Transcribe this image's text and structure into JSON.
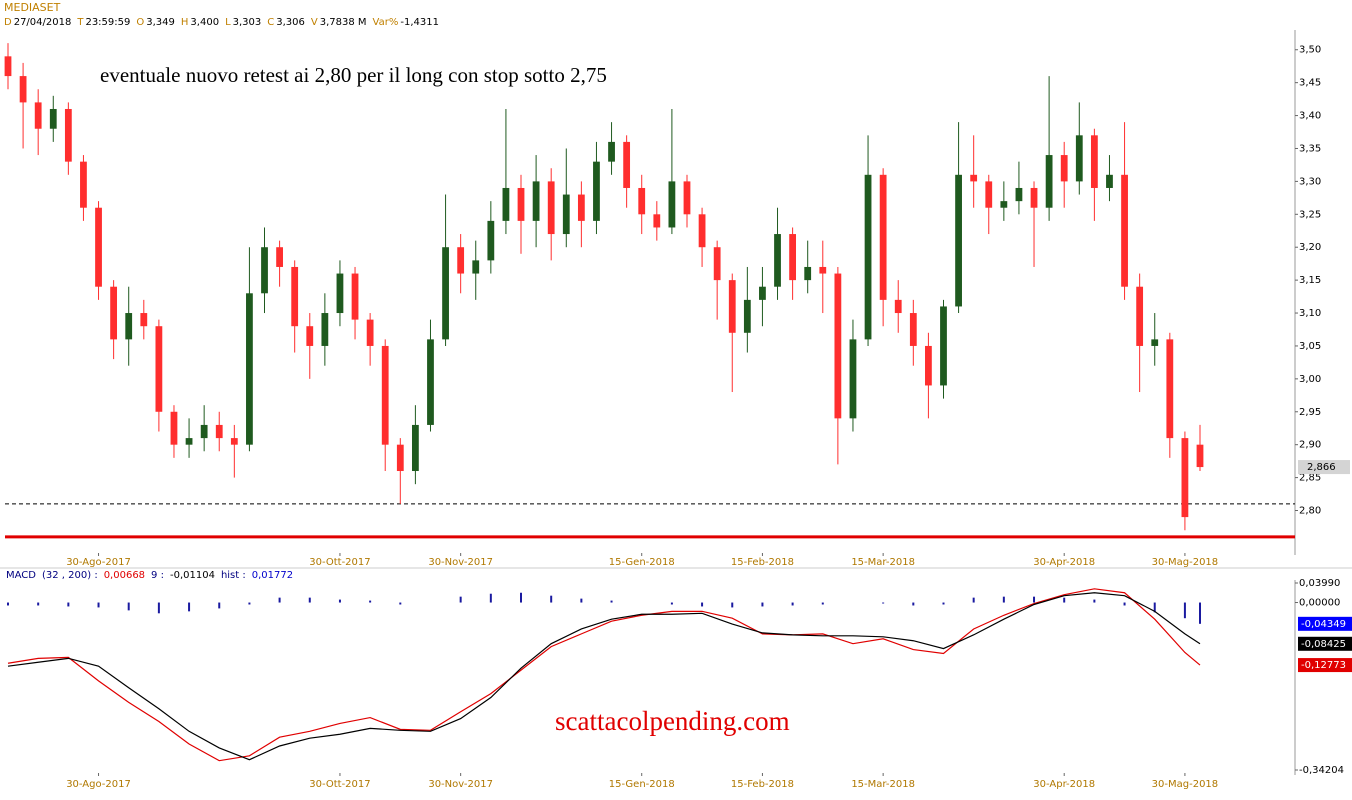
{
  "chart_data": [
    {
      "type": "candlestick",
      "title": "MEDIASET",
      "info": [
        {
          "key": "D",
          "value": "27/04/2018"
        },
        {
          "key": "T",
          "value": "23:59:59"
        },
        {
          "key": "O",
          "value": "3,349"
        },
        {
          "key": "H",
          "value": "3,400"
        },
        {
          "key": "L",
          "value": "3,303"
        },
        {
          "key": "C",
          "value": "3,306"
        },
        {
          "key": "V",
          "value": "3,7838 M"
        },
        {
          "key": "Var%",
          "value": "-1,4311"
        }
      ],
      "annotation": "eventuale nuovo retest ai 2,80 per il long con stop sotto 2,75",
      "up_color": "#1f5a1f",
      "down_color": "#ff2e2e",
      "ohlc": [
        [
          3.49,
          3.51,
          3.44,
          3.46
        ],
        [
          3.46,
          3.48,
          3.35,
          3.42
        ],
        [
          3.42,
          3.44,
          3.34,
          3.38
        ],
        [
          3.38,
          3.43,
          3.36,
          3.41
        ],
        [
          3.41,
          3.42,
          3.31,
          3.33
        ],
        [
          3.33,
          3.34,
          3.24,
          3.26
        ],
        [
          3.26,
          3.27,
          3.12,
          3.14
        ],
        [
          3.14,
          3.15,
          3.03,
          3.06
        ],
        [
          3.06,
          3.14,
          3.02,
          3.1
        ],
        [
          3.1,
          3.12,
          3.06,
          3.08
        ],
        [
          3.08,
          3.09,
          2.92,
          2.95
        ],
        [
          2.95,
          2.96,
          2.88,
          2.9
        ],
        [
          2.9,
          2.94,
          2.88,
          2.91
        ],
        [
          2.91,
          2.96,
          2.89,
          2.93
        ],
        [
          2.93,
          2.95,
          2.89,
          2.91
        ],
        [
          2.91,
          2.93,
          2.85,
          2.9
        ],
        [
          2.9,
          3.2,
          2.89,
          3.13
        ],
        [
          3.13,
          3.23,
          3.1,
          3.2
        ],
        [
          3.2,
          3.21,
          3.14,
          3.17
        ],
        [
          3.17,
          3.18,
          3.04,
          3.08
        ],
        [
          3.08,
          3.1,
          3.0,
          3.05
        ],
        [
          3.05,
          3.13,
          3.02,
          3.1
        ],
        [
          3.1,
          3.18,
          3.08,
          3.16
        ],
        [
          3.16,
          3.17,
          3.06,
          3.09
        ],
        [
          3.09,
          3.1,
          3.02,
          3.05
        ],
        [
          3.05,
          3.06,
          2.86,
          2.9
        ],
        [
          2.9,
          2.91,
          2.81,
          2.86
        ],
        [
          2.86,
          2.96,
          2.84,
          2.93
        ],
        [
          2.93,
          3.09,
          2.92,
          3.06
        ],
        [
          3.06,
          3.28,
          3.05,
          3.2
        ],
        [
          3.2,
          3.22,
          3.13,
          3.16
        ],
        [
          3.16,
          3.21,
          3.12,
          3.18
        ],
        [
          3.18,
          3.27,
          3.16,
          3.24
        ],
        [
          3.24,
          3.41,
          3.22,
          3.29
        ],
        [
          3.29,
          3.31,
          3.19,
          3.24
        ],
        [
          3.24,
          3.34,
          3.2,
          3.3
        ],
        [
          3.3,
          3.32,
          3.18,
          3.22
        ],
        [
          3.22,
          3.35,
          3.2,
          3.28
        ],
        [
          3.28,
          3.3,
          3.2,
          3.24
        ],
        [
          3.24,
          3.36,
          3.22,
          3.33
        ],
        [
          3.33,
          3.39,
          3.31,
          3.36
        ],
        [
          3.36,
          3.37,
          3.26,
          3.29
        ],
        [
          3.29,
          3.31,
          3.22,
          3.25
        ],
        [
          3.25,
          3.27,
          3.21,
          3.23
        ],
        [
          3.23,
          3.41,
          3.22,
          3.3
        ],
        [
          3.3,
          3.31,
          3.23,
          3.25
        ],
        [
          3.25,
          3.26,
          3.17,
          3.2
        ],
        [
          3.2,
          3.21,
          3.09,
          3.15
        ],
        [
          3.15,
          3.16,
          2.98,
          3.07
        ],
        [
          3.07,
          3.17,
          3.04,
          3.12
        ],
        [
          3.12,
          3.17,
          3.08,
          3.14
        ],
        [
          3.14,
          3.26,
          3.12,
          3.22
        ],
        [
          3.22,
          3.23,
          3.12,
          3.15
        ],
        [
          3.15,
          3.21,
          3.13,
          3.17
        ],
        [
          3.17,
          3.21,
          3.1,
          3.16
        ],
        [
          3.16,
          3.17,
          2.87,
          2.94
        ],
        [
          2.94,
          3.09,
          2.92,
          3.06
        ],
        [
          3.06,
          3.37,
          3.05,
          3.31
        ],
        [
          3.31,
          3.32,
          3.08,
          3.12
        ],
        [
          3.12,
          3.15,
          3.07,
          3.1
        ],
        [
          3.1,
          3.12,
          3.02,
          3.05
        ],
        [
          3.05,
          3.07,
          2.94,
          2.99
        ],
        [
          2.99,
          3.12,
          2.97,
          3.11
        ],
        [
          3.11,
          3.39,
          3.1,
          3.31
        ],
        [
          3.31,
          3.37,
          3.26,
          3.3
        ],
        [
          3.3,
          3.31,
          3.22,
          3.26
        ],
        [
          3.26,
          3.3,
          3.24,
          3.27
        ],
        [
          3.27,
          3.33,
          3.25,
          3.29
        ],
        [
          3.29,
          3.3,
          3.17,
          3.26
        ],
        [
          3.26,
          3.46,
          3.24,
          3.34
        ],
        [
          3.34,
          3.36,
          3.26,
          3.3
        ],
        [
          3.3,
          3.42,
          3.28,
          3.37
        ],
        [
          3.37,
          3.38,
          3.24,
          3.29
        ],
        [
          3.29,
          3.34,
          3.27,
          3.31
        ],
        [
          3.31,
          3.39,
          3.12,
          3.14
        ],
        [
          3.14,
          3.16,
          2.98,
          3.05
        ],
        [
          3.05,
          3.1,
          3.02,
          3.06
        ],
        [
          3.06,
          3.07,
          2.88,
          2.91
        ],
        [
          2.91,
          2.92,
          2.77,
          2.79
        ],
        [
          2.9,
          2.93,
          2.86,
          2.866
        ]
      ],
      "xticks": [
        {
          "value": 6,
          "label": "30-Ago-2017"
        },
        {
          "value": 22,
          "label": "30-Ott-2017"
        },
        {
          "value": 30,
          "label": "30-Nov-2017"
        },
        {
          "value": 42,
          "label": "15-Gen-2018"
        },
        {
          "value": 50,
          "label": "15-Feb-2018"
        },
        {
          "value": 58,
          "label": "15-Mar-2018"
        },
        {
          "value": 70,
          "label": "30-Apr-2018"
        },
        {
          "value": 78,
          "label": "30-Mag-2018"
        }
      ],
      "xlim": [
        0,
        79
      ],
      "ylim": [
        2.74,
        3.53
      ],
      "yticks": [
        {
          "value": 2.8,
          "label": "2,80"
        },
        {
          "value": 2.85,
          "label": "2,85"
        },
        {
          "value": 2.9,
          "label": "2,90"
        },
        {
          "value": 2.95,
          "label": "2,95"
        },
        {
          "value": 3.0,
          "label": "3,00"
        },
        {
          "value": 3.05,
          "label": "3,05"
        },
        {
          "value": 3.1,
          "label": "3,10"
        },
        {
          "value": 3.15,
          "label": "3,15"
        },
        {
          "value": 3.2,
          "label": "3,20"
        },
        {
          "value": 3.25,
          "label": "3,25"
        },
        {
          "value": 3.3,
          "label": "3,30"
        },
        {
          "value": 3.35,
          "label": "3,35"
        },
        {
          "value": 3.4,
          "label": "3,40"
        },
        {
          "value": 3.45,
          "label": "3,45"
        },
        {
          "value": 3.5,
          "label": "3,50"
        }
      ],
      "hlines": [
        {
          "value": 2.81,
          "color": "#000000",
          "dashed": true
        },
        {
          "value": 2.76,
          "color": "#e00000",
          "dashed": false
        }
      ],
      "last_price": {
        "value": 2.866,
        "label": "2,866"
      }
    },
    {
      "type": "macd",
      "info": [
        {
          "text": "MACD",
          "color": "#000080"
        },
        {
          "text": "(32 , 200) :",
          "color": "#000080"
        },
        {
          "text": "0,00668",
          "color": "#e00000"
        },
        {
          "text": "9 :",
          "color": "#000080"
        },
        {
          "text": "-0,01104",
          "color": "#000000"
        },
        {
          "text": "hist :",
          "color": "#000080"
        },
        {
          "text": "0,01772",
          "color": "#0000cc"
        }
      ],
      "watermark": "scattacolpending.com",
      "x": [
        0,
        2,
        4,
        6,
        8,
        10,
        12,
        14,
        16,
        18,
        20,
        22,
        24,
        26,
        28,
        30,
        32,
        34,
        36,
        38,
        40,
        42,
        44,
        46,
        48,
        50,
        52,
        54,
        56,
        58,
        60,
        62,
        64,
        66,
        68,
        70,
        72,
        74,
        76,
        78,
        79
      ],
      "series": [
        {
          "color": "#e00000",
          "values": [
            -0.124,
            -0.114,
            -0.112,
            -0.16,
            -0.204,
            -0.243,
            -0.289,
            -0.323,
            -0.313,
            -0.275,
            -0.263,
            -0.247,
            -0.235,
            -0.259,
            -0.261,
            -0.223,
            -0.186,
            -0.138,
            -0.09,
            -0.064,
            -0.038,
            -0.026,
            -0.018,
            -0.018,
            -0.032,
            -0.064,
            -0.066,
            -0.064,
            -0.084,
            -0.074,
            -0.096,
            -0.104,
            -0.054,
            -0.026,
            -0.002,
            0.016,
            0.028,
            0.02,
            -0.034,
            -0.102,
            -0.12773
          ]
        },
        {
          "color": "#000000",
          "values": [
            -0.13,
            -0.122,
            -0.114,
            -0.13,
            -0.174,
            -0.217,
            -0.263,
            -0.297,
            -0.321,
            -0.293,
            -0.277,
            -0.269,
            -0.257,
            -0.261,
            -0.263,
            -0.237,
            -0.194,
            -0.134,
            -0.084,
            -0.054,
            -0.034,
            -0.024,
            -0.024,
            -0.022,
            -0.044,
            -0.062,
            -0.066,
            -0.068,
            -0.068,
            -0.07,
            -0.078,
            -0.094,
            -0.066,
            -0.034,
            -0.004,
            0.014,
            0.02,
            0.014,
            -0.018,
            -0.064,
            -0.08425
          ]
        }
      ],
      "histogram": {
        "color": "#1a1aa0",
        "values": [
          -0.006,
          -0.006,
          -0.008,
          -0.01,
          -0.016,
          -0.022,
          -0.018,
          -0.012,
          -0.004,
          0.01,
          0.01,
          0.006,
          0.004,
          -0.004,
          0.0,
          0.012,
          0.018,
          0.02,
          0.014,
          0.008,
          0.004,
          0.0,
          -0.004,
          -0.008,
          -0.01,
          -0.008,
          -0.006,
          -0.004,
          0.0,
          -0.002,
          -0.006,
          -0.004,
          0.01,
          0.012,
          0.012,
          0.01,
          0.006,
          -0.006,
          -0.02,
          -0.032,
          -0.04349
        ]
      },
      "ylim": [
        -0.34204,
        0.0399
      ],
      "yticks": [
        {
          "value": 0.0399,
          "label": "0,03990"
        },
        {
          "value": 0,
          "label": "0,00000"
        },
        {
          "value": -0.34204,
          "label": "-0,34204"
        }
      ],
      "value_boxes": [
        {
          "value": -0.04349,
          "label": "-0,04349",
          "color": "#0000ff"
        },
        {
          "value": -0.08425,
          "label": "-0,08425",
          "color": "#000000"
        },
        {
          "value": -0.12773,
          "label": "-0,12773",
          "color": "#e00000"
        }
      ]
    }
  ]
}
